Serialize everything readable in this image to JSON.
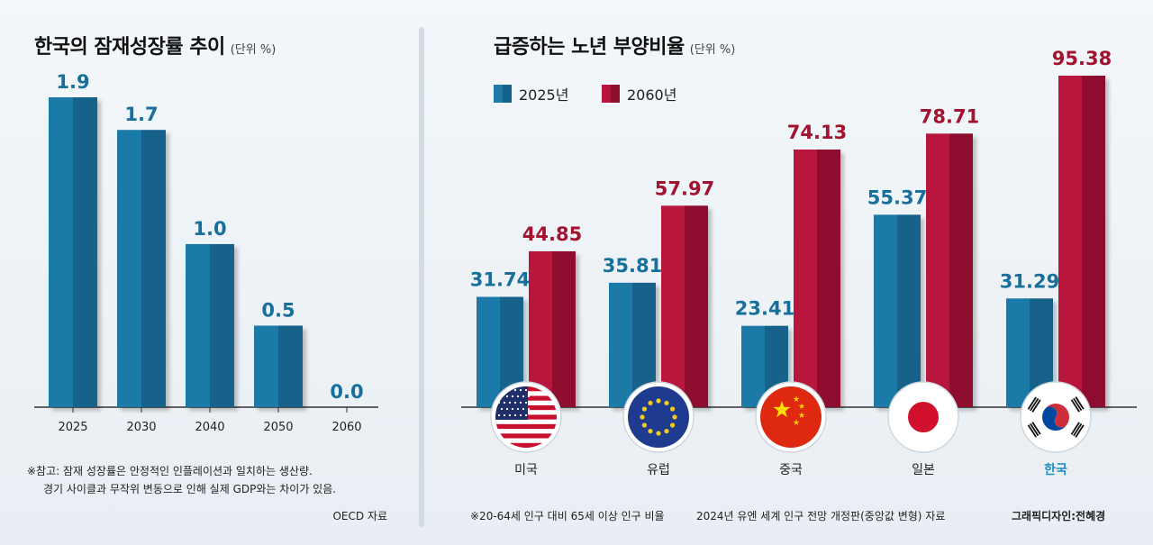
{
  "left": {
    "title": "한국의 잠재성장률 추이",
    "unit": "(단위 %)",
    "note_line1": "※참고: 잠재 성장률은 안정적인 인플레이션과 일치하는 생산량.",
    "note_line2": "경기 사이클과 무작위 변동으로 인해 실제 GDP와는 차이가 있음.",
    "source": "OECD 자료"
  },
  "right": {
    "title": "급증하는 노년 부양비율",
    "unit": "(단위 %)",
    "footnote": "※20-64세 인구 대비 65세 이상 인구 비율",
    "source": "2024년 유엔 세계 인구 전망 개정판(중앙값 변형) 자료",
    "credit": "그래픽디자인:전혜경"
  },
  "colors": {
    "blue": "#1d6d97",
    "blue_dark": "#155678",
    "blue_label": "#17709c",
    "red": "#b3123a",
    "red_dark": "#8a0d2c",
    "red_label": "#a3122f",
    "highlight_label": "#1c8bc2"
  },
  "chart_data": [
    {
      "type": "bar",
      "title": "한국의 잠재성장률 추이",
      "ylabel": "(단위 %)",
      "categories": [
        "2025",
        "2030",
        "2040",
        "2050",
        "2060"
      ],
      "values": [
        1.9,
        1.7,
        1.0,
        0.5,
        0.0
      ],
      "value_labels": [
        "1.9",
        "1.7",
        "1.0",
        "0.5",
        "0.0"
      ],
      "ylim": [
        0,
        1.9
      ]
    },
    {
      "type": "bar",
      "title": "급증하는 노년 부양비율",
      "ylabel": "(단위 %)",
      "categories": [
        "미국",
        "유럽",
        "중국",
        "일본",
        "한국"
      ],
      "highlight_category": "한국",
      "series": [
        {
          "name": "2025년",
          "values": [
            31.74,
            35.81,
            23.41,
            55.37,
            31.29
          ]
        },
        {
          "name": "2060년",
          "values": [
            44.85,
            57.97,
            74.13,
            78.71,
            95.38
          ]
        }
      ],
      "value_labels": [
        [
          "31.74",
          "35.81",
          "23.41",
          "55.37",
          "31.29"
        ],
        [
          "44.85",
          "57.97",
          "74.13",
          "78.71",
          "95.38"
        ]
      ],
      "legend": [
        "2025년",
        "2060년"
      ],
      "legend_position": "top-left",
      "icons": [
        "us-flag-icon",
        "eu-flag-icon",
        "china-flag-icon",
        "japan-flag-icon",
        "korea-flag-icon"
      ],
      "ylim": [
        0,
        95.38
      ]
    }
  ]
}
